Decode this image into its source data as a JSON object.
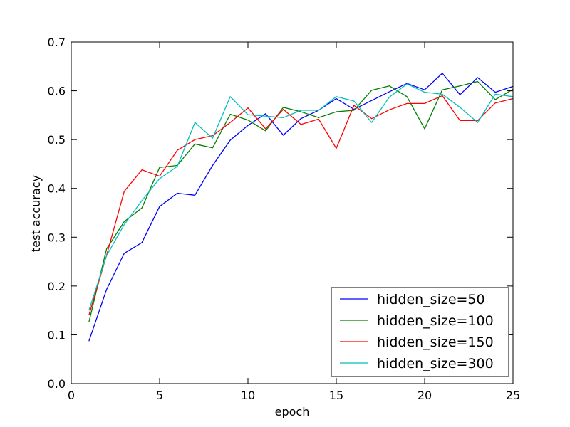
{
  "chart_data": {
    "type": "line",
    "title": "",
    "xlabel": "epoch",
    "ylabel": "test accuracy",
    "xlim": [
      0,
      25
    ],
    "ylim": [
      0.0,
      0.7
    ],
    "xticks": [
      0,
      5,
      10,
      15,
      20,
      25
    ],
    "yticks": [
      0.0,
      0.1,
      0.2,
      0.3,
      0.4,
      0.5,
      0.6,
      0.7
    ],
    "xtick_labels": [
      "0",
      "5",
      "10",
      "15",
      "20",
      "25"
    ],
    "ytick_labels": [
      "0.0",
      "0.1",
      "0.2",
      "0.3",
      "0.4",
      "0.5",
      "0.6",
      "0.7"
    ],
    "grid": false,
    "legend_position": "lower-right",
    "x": [
      1,
      2,
      3,
      4,
      5,
      6,
      7,
      8,
      9,
      10,
      11,
      12,
      13,
      14,
      15,
      16,
      17,
      18,
      19,
      20,
      21,
      22,
      23,
      24,
      25
    ],
    "series": [
      {
        "name": "hidden_size=50",
        "color": "#0000ff",
        "values": [
          0.087,
          0.193,
          0.267,
          0.289,
          0.363,
          0.39,
          0.386,
          0.447,
          0.499,
          0.529,
          0.553,
          0.509,
          0.543,
          0.56,
          0.584,
          0.562,
          0.58,
          0.598,
          0.615,
          0.602,
          0.636,
          0.592,
          0.627,
          0.597,
          0.609
        ]
      },
      {
        "name": "hidden_size=100",
        "color": "#008000",
        "values": [
          0.126,
          0.276,
          0.332,
          0.36,
          0.443,
          0.447,
          0.491,
          0.483,
          0.552,
          0.54,
          0.518,
          0.566,
          0.557,
          0.545,
          0.557,
          0.56,
          0.601,
          0.61,
          0.588,
          0.522,
          0.602,
          0.61,
          0.619,
          0.582,
          0.603
        ]
      },
      {
        "name": "hidden_size=150",
        "color": "#ff0000",
        "values": [
          0.14,
          0.263,
          0.394,
          0.438,
          0.425,
          0.478,
          0.5,
          0.508,
          0.535,
          0.565,
          0.522,
          0.562,
          0.531,
          0.542,
          0.482,
          0.57,
          0.543,
          0.561,
          0.574,
          0.574,
          0.59,
          0.539,
          0.539,
          0.575,
          0.584
        ]
      },
      {
        "name": "hidden_size=300",
        "color": "#00bfbf",
        "values": [
          0.15,
          0.262,
          0.326,
          0.375,
          0.42,
          0.445,
          0.535,
          0.503,
          0.588,
          0.551,
          0.548,
          0.545,
          0.56,
          0.56,
          0.588,
          0.579,
          0.535,
          0.587,
          0.614,
          0.597,
          0.593,
          0.566,
          0.535,
          0.593,
          0.588
        ]
      }
    ]
  }
}
